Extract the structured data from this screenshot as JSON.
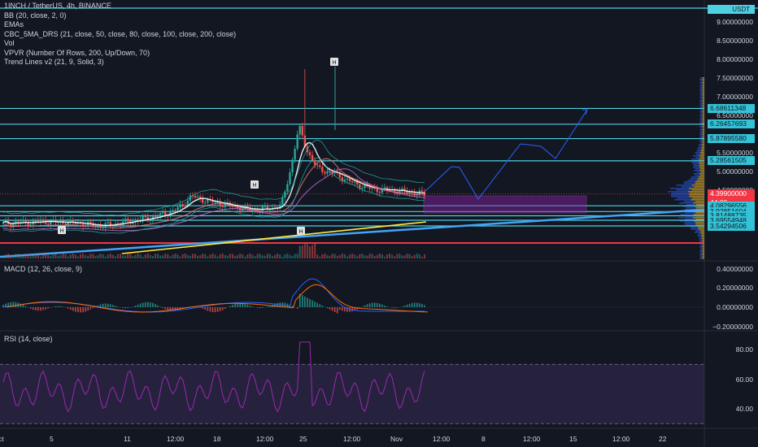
{
  "legend": {
    "symbol": "1INCH / TetherUS, 4h, BINANCE",
    "indicators": [
      "BB (20, close, 2, 0)",
      "EMAs",
      "CBC_5MA_DRS (21, close, 50, close, 80, close, 100, close, 200, close)",
      "Vol",
      "VPVR (Number Of Rows, 200, Up/Down, 70)",
      "Trend Lines v2 (21, 9, Solid, 3)"
    ]
  },
  "macd_title": "MACD (12, 26, close, 9)",
  "rsi_title": "RSI (14, close)",
  "currency_badge": "USDT",
  "colors": {
    "background": "#131722",
    "up_candle": "#26a69a",
    "down_candle": "#ef5350",
    "level_line": "#4dd0e1",
    "projection": "#2962ff",
    "zone": "#8e24aa",
    "rsi": "#7e57c2"
  },
  "price_axis": [
    "9.00000000",
    "8.50000000",
    "8.00000000",
    "7.50000000",
    "7.00000000",
    "6.50000000",
    "5.50000000",
    "5.00000000",
    "4.50000000"
  ],
  "price_tags": [
    {
      "label": "6.68611348",
      "color": "cyan"
    },
    {
      "label": "6.26457693",
      "color": "cyan"
    },
    {
      "label": "5.87895580",
      "color": "cyan"
    },
    {
      "label": "5.28561505",
      "color": "cyan"
    },
    {
      "label": "4.39900000",
      "color": "red"
    },
    {
      "label": "44:00",
      "color": "red"
    },
    {
      "label": "4.08296556",
      "color": "cyan"
    },
    {
      "label": "3.92851604",
      "color": "cyan"
    },
    {
      "label": "3.81488735",
      "color": "cyan"
    },
    {
      "label": "3.69554948",
      "color": "cyan"
    },
    {
      "label": "3.54294506",
      "color": "cyan"
    }
  ],
  "macd_axis": [
    "0.40000000",
    "0.20000000",
    "0.00000000",
    "−0.20000000"
  ],
  "rsi_axis": [
    "80.00",
    "60.00",
    "40.00"
  ],
  "time_axis": [
    "ct",
    "5",
    "11",
    "12:00",
    "18",
    "12:00",
    "25",
    "12:00",
    "Nov",
    "12:00",
    "8",
    "12:00",
    "15",
    "12:00",
    "22"
  ],
  "chart_data": {
    "type": "candlestick",
    "title": "1INCH / TetherUS, 4h, BINANCE",
    "price_ylim": [
      3.4,
      9.2
    ],
    "last_price": 4.399,
    "horizontal_levels": [
      6.68611348,
      6.26457693,
      5.8789558,
      5.28561505,
      4.08296556,
      3.92851604,
      3.81488735,
      3.69554948,
      3.54294506
    ],
    "close_path": [
      3.6,
      3.62,
      3.65,
      3.62,
      3.68,
      3.66,
      3.64,
      3.65,
      3.62,
      3.6,
      3.56,
      3.55,
      3.58,
      3.62,
      3.66,
      3.7,
      3.74,
      3.8,
      3.86,
      3.95,
      4.1,
      4.35,
      4.25,
      4.2,
      4.15,
      4.1,
      4.05,
      4.0,
      3.98,
      4.0,
      4.02,
      4.08,
      5.0,
      6.2,
      5.5,
      5.1,
      5.0,
      4.95,
      4.8,
      4.7,
      4.6,
      4.55,
      4.5,
      4.52,
      4.48,
      4.45,
      4.42,
      4.4
    ],
    "macd_ylim": [
      -0.22,
      0.45
    ],
    "rsi_ylim": [
      25,
      95
    ],
    "rsi_bands": [
      70,
      30
    ]
  }
}
